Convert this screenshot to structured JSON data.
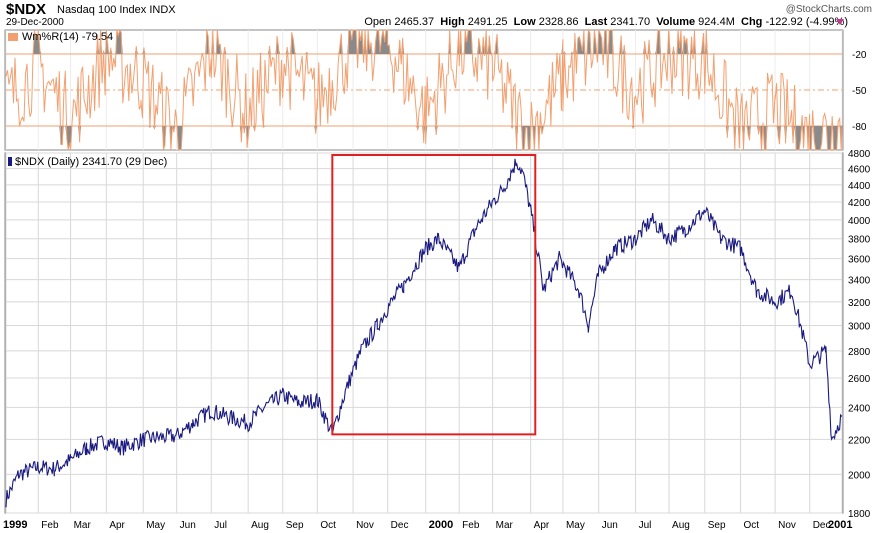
{
  "header": {
    "symbol": "$NDX",
    "name": "Nasdaq 100 Index INDX",
    "date": "29-Dec-2000",
    "logo": "@StockCharts.com",
    "open_label": "Open",
    "open": "2465.37",
    "high_label": "High",
    "high": "2491.25",
    "low_label": "Low",
    "low": "2328.86",
    "last_label": "Last",
    "last": "2341.70",
    "volume_label": "Volume",
    "volume": "924.4M",
    "chg_label": "Chg",
    "chg": "-122.92 (-4.99%)",
    "chg_arrow": "down-arrow-icon"
  },
  "colors": {
    "price_line": "#1a1a80",
    "indicator_line": "#f2a070",
    "indicator_fill": "#8a8a8a",
    "highlight_box": "#e02020",
    "grid": "#d8d8d8"
  },
  "chart_data": [
    {
      "type": "line",
      "title": "Wm%R(14) -79.54",
      "ylim": [
        -100,
        0
      ],
      "y_ticks": [
        "-20",
        "-50",
        "-80"
      ],
      "reference_lines": [
        -20,
        -50,
        -80
      ],
      "fill_beyond_levels": true,
      "x": [
        "1999-01-04",
        "1999-02-01",
        "1999-03-01",
        "1999-04-01",
        "1999-05-01",
        "1999-06-01",
        "1999-07-01",
        "1999-08-01",
        "1999-09-01",
        "1999-10-01",
        "1999-11-01",
        "1999-12-01",
        "2000-01-03",
        "2000-02-01",
        "2000-03-01",
        "2000-04-01",
        "2000-05-01",
        "2000-06-01",
        "2000-07-03",
        "2000-08-01",
        "2000-09-01",
        "2000-10-02",
        "2000-11-01",
        "2000-12-01",
        "2000-12-29"
      ],
      "y": [
        -60,
        -30,
        -75,
        -20,
        -40,
        -85,
        -15,
        -70,
        -25,
        -60,
        -10,
        -10,
        -70,
        -15,
        -30,
        -90,
        -40,
        -10,
        -50,
        -20,
        -25,
        -85,
        -65,
        -90,
        -79.54
      ]
    },
    {
      "type": "line",
      "title": "$NDX (Daily) 2341.70 (29 Dec)",
      "y_scale": "log",
      "ylim": [
        1800,
        4800
      ],
      "y_ticks": [
        "4800",
        "4600",
        "4400",
        "4200",
        "4000",
        "3800",
        "3600",
        "3400",
        "3200",
        "3000",
        "2800",
        "2600",
        "2400",
        "2200",
        "2000",
        "1800"
      ],
      "x_ticks": [
        "1999",
        "Feb",
        "Mar",
        "Apr",
        "May",
        "Jun",
        "Jul",
        "Aug",
        "Sep",
        "Oct",
        "Nov",
        "Dec",
        "2000",
        "Feb",
        "Mar",
        "Apr",
        "May",
        "Jun",
        "Jul",
        "Aug",
        "Sep",
        "Oct",
        "Nov",
        "Dec",
        "2001"
      ],
      "grid": true,
      "highlight_box": {
        "x_start": "1999-10-14",
        "x_end": "2000-04-07",
        "y_low": 2230,
        "y_high": 4850
      },
      "x": [
        "1999-01-04",
        "1999-01-15",
        "1999-02-01",
        "1999-02-15",
        "1999-03-01",
        "1999-03-15",
        "1999-04-01",
        "1999-04-15",
        "1999-05-03",
        "1999-05-14",
        "1999-06-01",
        "1999-06-15",
        "1999-07-01",
        "1999-07-15",
        "1999-08-02",
        "1999-08-16",
        "1999-09-01",
        "1999-09-15",
        "1999-10-01",
        "1999-10-14",
        "1999-10-26",
        "1999-11-08",
        "1999-11-22",
        "1999-12-01",
        "1999-12-15",
        "2000-01-03",
        "2000-01-14",
        "2000-02-01",
        "2000-02-15",
        "2000-03-01",
        "2000-03-10",
        "2000-03-22",
        "2000-03-27",
        "2000-04-03",
        "2000-04-14",
        "2000-04-28",
        "2000-05-15",
        "2000-05-23",
        "2000-06-01",
        "2000-06-15",
        "2000-07-03",
        "2000-07-17",
        "2000-08-01",
        "2000-08-15",
        "2000-09-01",
        "2000-09-15",
        "2000-10-02",
        "2000-10-16",
        "2000-11-01",
        "2000-11-15",
        "2000-12-01",
        "2000-12-15",
        "2000-12-20",
        "2000-12-29"
      ],
      "y": [
        1870,
        2000,
        2040,
        2030,
        2080,
        2150,
        2190,
        2150,
        2200,
        2210,
        2220,
        2300,
        2380,
        2340,
        2300,
        2400,
        2480,
        2430,
        2450,
        2230,
        2520,
        2800,
        3000,
        3150,
        3350,
        3700,
        3800,
        3500,
        3900,
        4200,
        4350,
        4700,
        4550,
        4100,
        3300,
        3600,
        3300,
        3000,
        3450,
        3700,
        3800,
        4000,
        3800,
        3900,
        4100,
        3800,
        3700,
        3300,
        3200,
        3300,
        2700,
        2800,
        2200,
        2341.7
      ]
    }
  ]
}
